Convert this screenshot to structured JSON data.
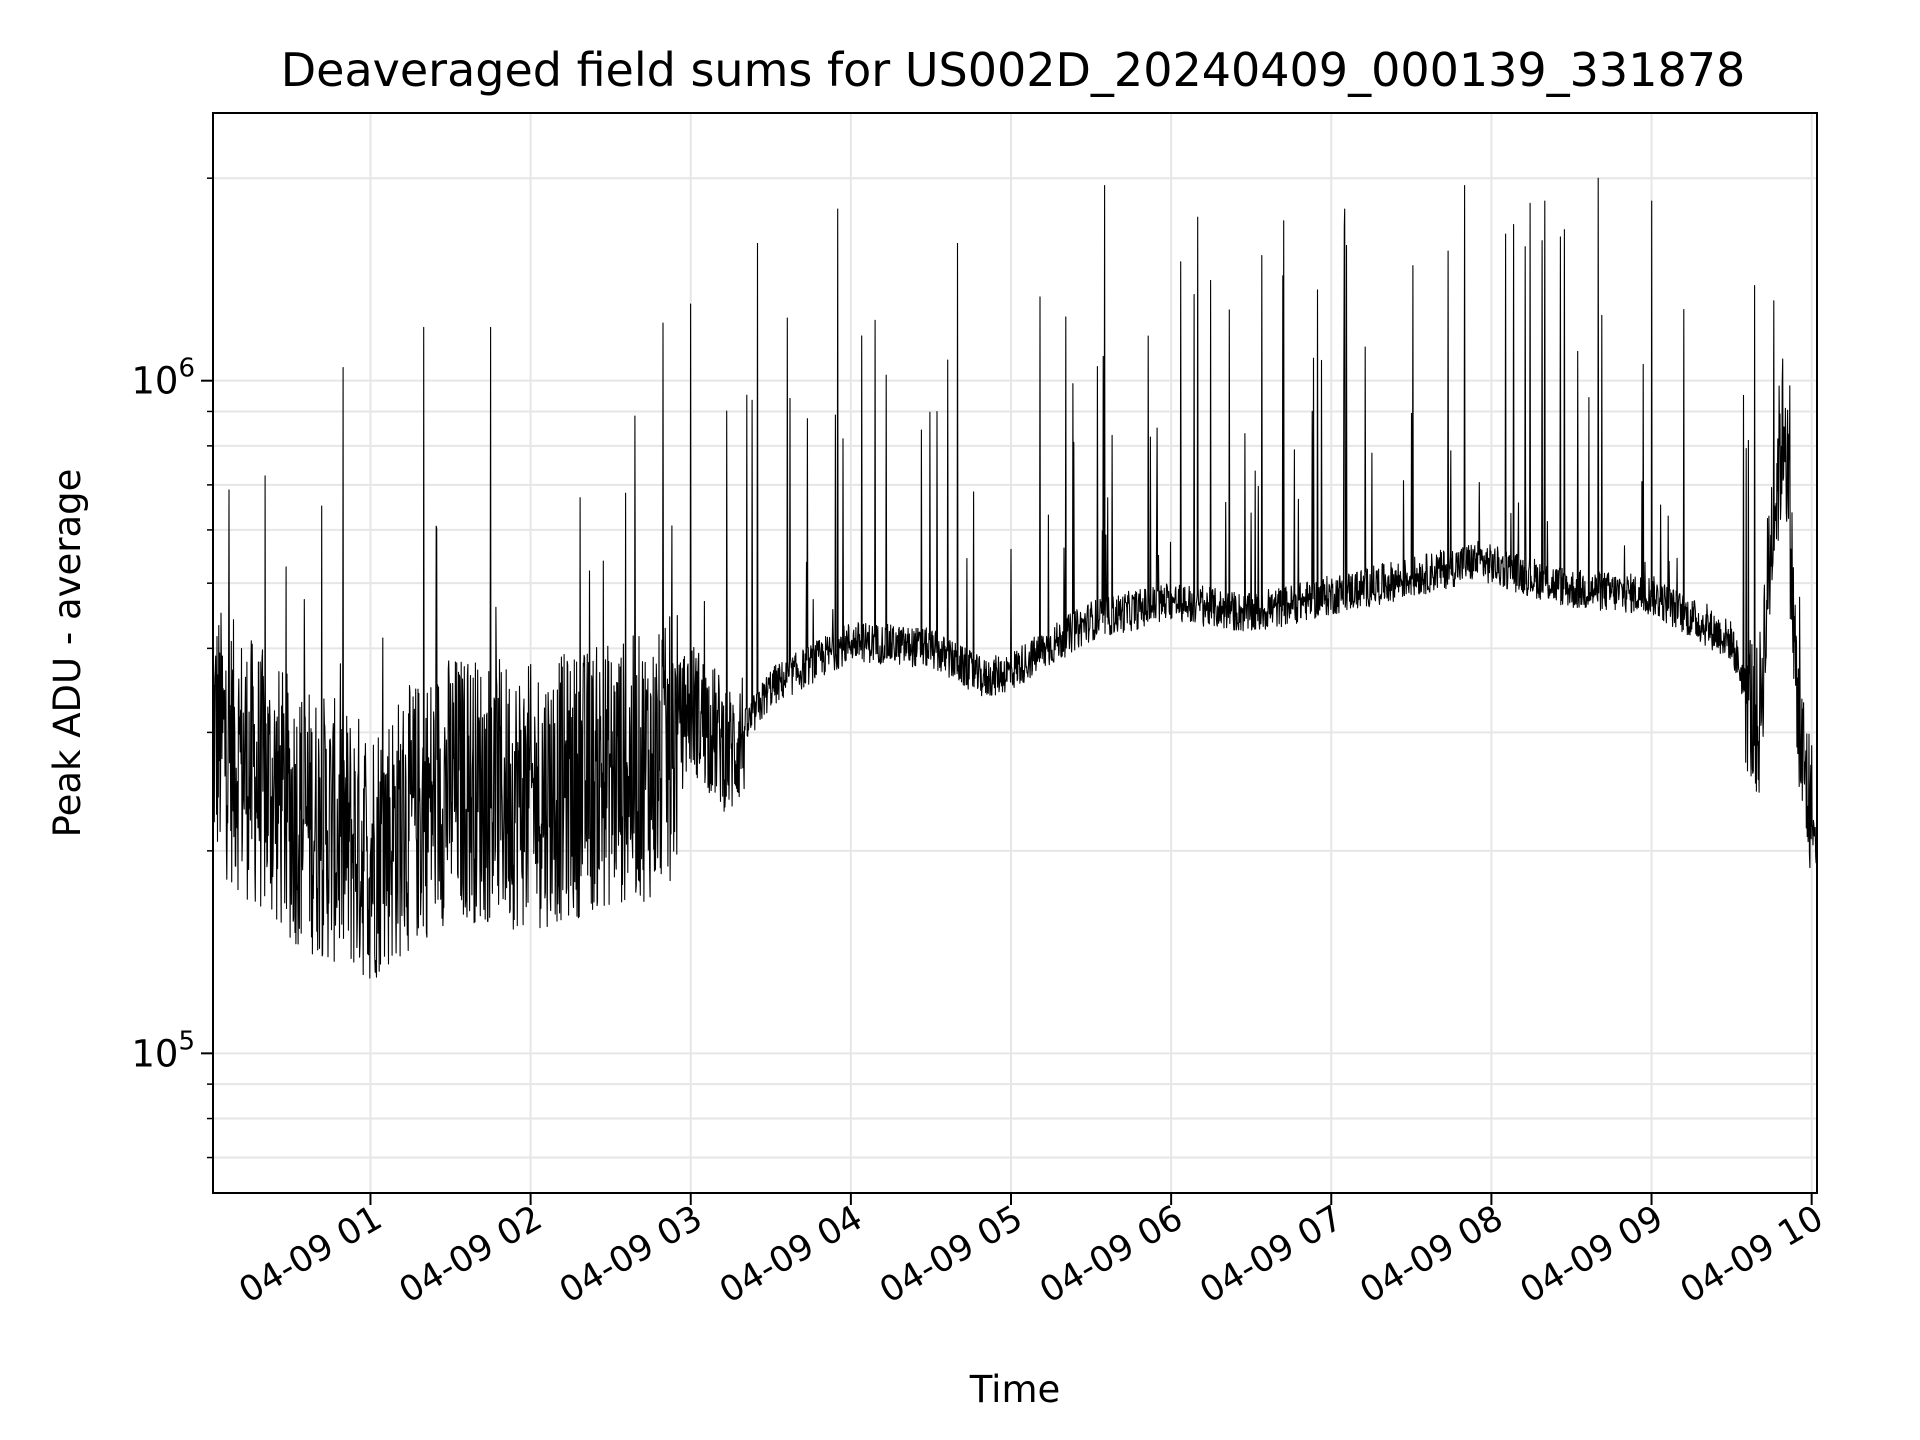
{
  "chart_data": {
    "type": "line",
    "title": "Deaveraged field sums for US002D_20240409_000139_331878",
    "xlabel": "Time",
    "ylabel": "Peak ADU - average",
    "x_range": [
      "2024-04-09 00:01",
      "2024-04-09 10:02"
    ],
    "ylim": [
      62000,
      2500000
    ],
    "y_scale": "log",
    "grid": true,
    "line_color": "#000000",
    "grid_color": "#e6e6e6",
    "x_ticks": [
      {
        "label": "04-09 01",
        "time": "2024-04-09 01:00"
      },
      {
        "label": "04-09 02",
        "time": "2024-04-09 02:00"
      },
      {
        "label": "04-09 03",
        "time": "2024-04-09 03:00"
      },
      {
        "label": "04-09 04",
        "time": "2024-04-09 04:00"
      },
      {
        "label": "04-09 05",
        "time": "2024-04-09 05:00"
      },
      {
        "label": "04-09 06",
        "time": "2024-04-09 06:00"
      },
      {
        "label": "04-09 07",
        "time": "2024-04-09 07:00"
      },
      {
        "label": "04-09 08",
        "time": "2024-04-09 08:00"
      },
      {
        "label": "04-09 09",
        "time": "2024-04-09 09:00"
      },
      {
        "label": "04-09 10",
        "time": "2024-04-09 10:00"
      }
    ],
    "y_ticks": [
      {
        "base": "10",
        "exp": "5",
        "value": 100000
      },
      {
        "base": "10",
        "exp": "6",
        "value": 1000000
      }
    ],
    "baseline": [
      [
        "2024-04-09 00:01",
        300000
      ],
      [
        "2024-04-09 00:30",
        230000
      ],
      [
        "2024-04-09 01:00",
        200000
      ],
      [
        "2024-04-09 01:30",
        250000
      ],
      [
        "2024-04-09 02:00",
        240000
      ],
      [
        "2024-04-09 02:30",
        260000
      ],
      [
        "2024-04-09 02:50",
        270000
      ],
      [
        "2024-04-09 03:00",
        330000
      ],
      [
        "2024-04-09 03:15",
        280000
      ],
      [
        "2024-04-09 03:30",
        350000
      ],
      [
        "2024-04-09 04:00",
        410000
      ],
      [
        "2024-04-09 04:30",
        400000
      ],
      [
        "2024-04-09 04:50",
        360000
      ],
      [
        "2024-04-09 05:00",
        370000
      ],
      [
        "2024-04-09 05:30",
        440000
      ],
      [
        "2024-04-09 06:00",
        470000
      ],
      [
        "2024-04-09 06:30",
        450000
      ],
      [
        "2024-04-09 07:00",
        480000
      ],
      [
        "2024-04-09 07:30",
        510000
      ],
      [
        "2024-04-09 07:55",
        540000
      ],
      [
        "2024-04-09 08:30",
        490000
      ],
      [
        "2024-04-09 09:00",
        480000
      ],
      [
        "2024-04-09 09:30",
        410000
      ],
      [
        "2024-04-09 09:40",
        300000
      ],
      [
        "2024-04-09 09:45",
        600000
      ],
      [
        "2024-04-09 09:50",
        900000
      ],
      [
        "2024-04-09 09:55",
        300000
      ],
      [
        "2024-04-09 10:02",
        200000
      ]
    ],
    "spikes": [
      [
        "2024-04-09 01:20",
        1200000
      ],
      [
        "2024-04-09 01:45",
        1200000
      ],
      [
        "2024-04-09 03:00",
        1300000
      ],
      [
        "2024-04-09 03:25",
        1600000
      ],
      [
        "2024-04-09 03:55",
        1800000
      ],
      [
        "2024-04-09 04:40",
        1600000
      ],
      [
        "2024-04-09 05:35",
        1950000
      ],
      [
        "2024-04-09 06:10",
        1750000
      ],
      [
        "2024-04-09 07:05",
        1800000
      ],
      [
        "2024-04-09 07:50",
        1950000
      ],
      [
        "2024-04-09 08:20",
        1850000
      ],
      [
        "2024-04-09 08:40",
        2000000
      ],
      [
        "2024-04-09 09:00",
        1850000
      ]
    ]
  }
}
